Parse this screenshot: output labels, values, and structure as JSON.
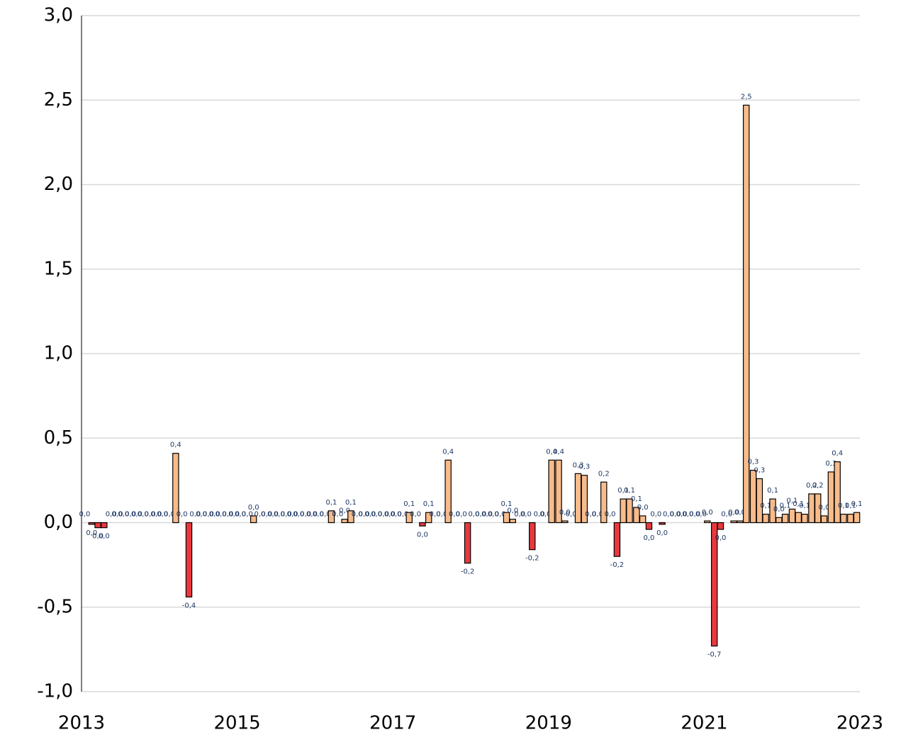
{
  "chart_data": {
    "type": "bar",
    "x": [
      2013.04,
      2013.13,
      2013.21,
      2013.29,
      2013.38,
      2013.46,
      2013.54,
      2013.63,
      2013.71,
      2013.79,
      2013.88,
      2013.96,
      2014.04,
      2014.13,
      2014.21,
      2014.29,
      2014.38,
      2014.46,
      2014.54,
      2014.63,
      2014.71,
      2014.79,
      2014.88,
      2014.96,
      2015.04,
      2015.13,
      2015.21,
      2015.29,
      2015.38,
      2015.46,
      2015.54,
      2015.63,
      2015.71,
      2015.79,
      2015.88,
      2015.96,
      2016.04,
      2016.13,
      2016.21,
      2016.29,
      2016.38,
      2016.46,
      2016.54,
      2016.63,
      2016.71,
      2016.79,
      2016.88,
      2016.96,
      2017.04,
      2017.13,
      2017.21,
      2017.29,
      2017.38,
      2017.46,
      2017.54,
      2017.63,
      2017.71,
      2017.79,
      2017.88,
      2017.96,
      2018.04,
      2018.13,
      2018.21,
      2018.29,
      2018.38,
      2018.46,
      2018.54,
      2018.63,
      2018.71,
      2018.79,
      2018.88,
      2018.96,
      2019.04,
      2019.13,
      2019.21,
      2019.29,
      2019.38,
      2019.46,
      2019.54,
      2019.63,
      2019.71,
      2019.79,
      2019.88,
      2019.96,
      2020.04,
      2020.13,
      2020.21,
      2020.29,
      2020.38,
      2020.46,
      2020.54,
      2020.63,
      2020.71,
      2020.79,
      2020.88,
      2020.96,
      2021.04,
      2021.13,
      2021.21,
      2021.29,
      2021.38,
      2021.46,
      2021.54,
      2021.63,
      2021.71,
      2021.79,
      2021.88,
      2021.96,
      2022.04,
      2022.13,
      2022.21,
      2022.29,
      2022.38,
      2022.46,
      2022.54,
      2022.63,
      2022.71,
      2022.79,
      2022.88,
      2022.96
    ],
    "values": [
      0,
      -0.01,
      -0.03,
      -0.03,
      0,
      0,
      0,
      0,
      0,
      0,
      0,
      0,
      0,
      0,
      0.41,
      0,
      -0.44,
      0,
      0,
      0,
      0,
      0,
      0,
      0,
      0,
      0,
      0.04,
      0,
      0,
      0,
      0,
      0,
      0,
      0,
      0,
      0,
      0,
      0,
      0.07,
      0,
      0.02,
      0.07,
      0,
      0,
      0,
      0,
      0,
      0,
      0,
      0,
      0.06,
      0,
      -0.02,
      0.06,
      0,
      0,
      0.37,
      0,
      0,
      -0.24,
      0,
      0,
      0,
      0,
      0,
      0.06,
      0.02,
      0,
      0,
      -0.16,
      0,
      0,
      0.37,
      0.37,
      0.01,
      0,
      0.29,
      0.28,
      0,
      0,
      0.24,
      0,
      -0.2,
      0.14,
      0.14,
      0.09,
      0.04,
      -0.04,
      0,
      -0.01,
      0,
      0,
      0,
      0,
      0,
      0,
      0.01,
      -0.73,
      -0.04,
      0,
      0.01,
      0.01,
      2.47,
      0.31,
      0.26,
      0.05,
      0.14,
      0.03,
      0.05,
      0.08,
      0.06,
      0.05,
      0.17,
      0.17,
      0.04,
      0.3,
      0.36,
      0.05,
      0.05,
      0.06
    ],
    "value_labels": [
      "0,0",
      "0,0",
      "0,0",
      "0,0",
      "0,0",
      "0,0",
      "0,0",
      "0,0",
      "0,0",
      "0,0",
      "0,0",
      "0,0",
      "0,0",
      "0,0",
      "0,4",
      "0,0",
      "-0,4",
      "0,0",
      "0,0",
      "0,0",
      "0,0",
      "0,0",
      "0,0",
      "0,0",
      "0,0",
      "0,0",
      "0,0",
      "0,0",
      "0,0",
      "0,0",
      "0,0",
      "0,0",
      "0,0",
      "0,0",
      "0,0",
      "0,0",
      "0,0",
      "0,0",
      "0,1",
      "0,0",
      "0,0",
      "0,1",
      "0,0",
      "0,0",
      "0,0",
      "0,0",
      "0,0",
      "0,0",
      "0,0",
      "0,0",
      "0,1",
      "0,0",
      "0,0",
      "0,1",
      "0,0",
      "0,0",
      "0,4",
      "0,0",
      "0,0",
      "-0,2",
      "0,0",
      "0,0",
      "0,0",
      "0,0",
      "0,0",
      "0,1",
      "0,0",
      "0,0",
      "0,0",
      "-0,2",
      "0,0",
      "0,0",
      "0,4",
      "0,4",
      "0,0",
      "0,0",
      "0,3",
      "0,3",
      "0,0",
      "0,0",
      "0,2",
      "0,0",
      "-0,2",
      "0,1",
      "0,1",
      "0,1",
      "0,0",
      "0,0",
      "0,0",
      "0,0",
      "0,0",
      "0,0",
      "0,0",
      "0,0",
      "0,0",
      "0,0",
      "0,0",
      "-0,7",
      "0,0",
      "0,0",
      "0,0",
      "0,0",
      "2,5",
      "0,3",
      "0,3",
      "0,1",
      "0,1",
      "0,0",
      "0,1",
      "0,1",
      "0,1",
      "0,1",
      "0,2",
      "0,2",
      "0,0",
      "0,3",
      "0,4",
      "0,1",
      "0,1",
      "0,1"
    ],
    "color": "#f8bb8a",
    "negative_color": "#e8383d",
    "xlim": [
      2013,
      2023
    ],
    "xticks": [
      2013,
      2015,
      2017,
      2019,
      2021,
      2023
    ],
    "ylim": [
      -1,
      3
    ],
    "yticks": [
      {
        "value": -1,
        "label": "-1,0"
      },
      {
        "value": -0.5,
        "label": "-0,5"
      },
      {
        "value": 0,
        "label": "0,0"
      },
      {
        "value": 0.5,
        "label": "0,5"
      },
      {
        "value": 1,
        "label": "1,0"
      },
      {
        "value": 1.5,
        "label": "1,5"
      },
      {
        "value": 2,
        "label": "2,0"
      },
      {
        "value": 2.5,
        "label": "2,5"
      },
      {
        "value": 3,
        "label": "3,0"
      }
    ],
    "grid": true
  }
}
